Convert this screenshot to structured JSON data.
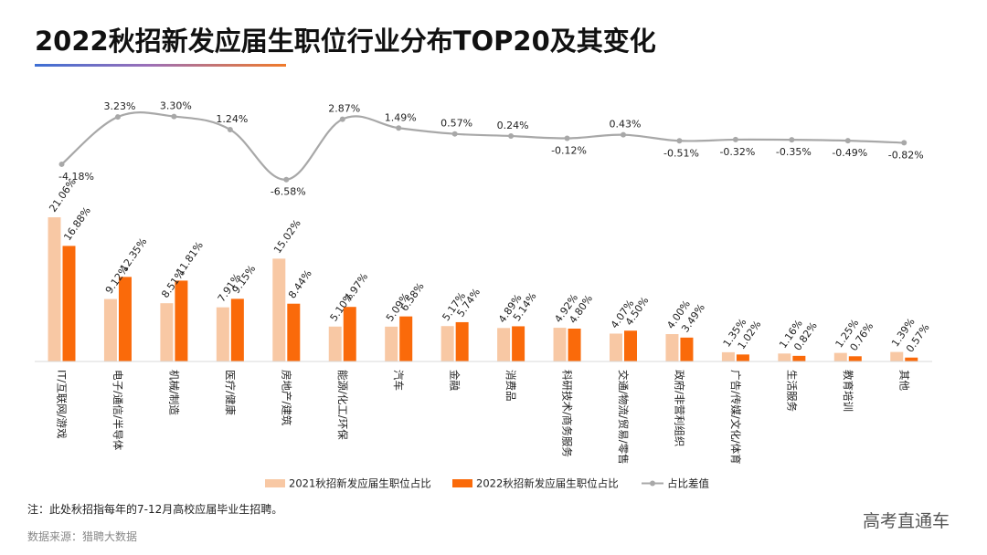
{
  "title": "2022秋招新发应届生职位行业分布TOP20及其变化",
  "note": "注：此处秋招指每年的7-12月高校应届毕业生招聘。",
  "source": "数据来源：猎聘大数据",
  "watermark": "高考直通车",
  "colors": {
    "s2021": "#f8c8a4",
    "s2022": "#fa6a0a",
    "diff": "#a8a8a8"
  },
  "chart_data": {
    "type": "bar",
    "title": "2022秋招新发应届生职位行业分布TOP20及其变化",
    "categories": [
      "IT/互联网/游戏",
      "电子/通信/半导体",
      "机械/制造",
      "医疗/健康",
      "房地产/建筑",
      "能源/化工/环保",
      "汽车",
      "金融",
      "消费品",
      "科研技术/商务服务",
      "交通/物流/贸易/零售",
      "政府/非营利组织",
      "广告/传媒/文化/体育",
      "生活服务",
      "教育培训",
      "其他"
    ],
    "series": [
      {
        "name": "2021秋招新发应届生职位占比",
        "values": [
          21.06,
          9.12,
          8.51,
          7.91,
          15.02,
          5.1,
          5.09,
          5.17,
          4.89,
          4.92,
          4.07,
          4.0,
          1.35,
          1.16,
          1.25,
          1.39
        ],
        "labels": [
          "21.06%",
          "9.12%",
          "8.51%",
          "7.91%",
          "15.02%",
          "5.10%",
          "5.09%",
          "5.17%",
          "4.89%",
          "4.92%",
          "4.07%",
          "4.00%",
          "1.35%",
          "1.16%",
          "1.25%",
          "1.39%"
        ]
      },
      {
        "name": "2022秋招新发应届生职位占比",
        "values": [
          16.88,
          12.35,
          11.81,
          9.15,
          8.44,
          7.97,
          6.58,
          5.74,
          5.14,
          4.8,
          4.5,
          3.49,
          1.02,
          0.82,
          0.76,
          0.57
        ],
        "labels": [
          "16.88%",
          "12.35%",
          "11.81%",
          "9.15%",
          "8.44%",
          "7.97%",
          "6.58%",
          "5.74%",
          "5.14%",
          "4.80%",
          "4.50%",
          "3.49%",
          "1.02%",
          "0.82%",
          "0.76%",
          "0.57%"
        ]
      }
    ],
    "line_series": {
      "name": "占比差值",
      "type": "line",
      "values": [
        -4.18,
        3.23,
        3.3,
        1.24,
        -6.58,
        2.87,
        1.49,
        0.57,
        0.24,
        -0.12,
        0.43,
        -0.51,
        -0.32,
        -0.35,
        -0.49,
        -0.82
      ],
      "labels": [
        "-4.18%",
        "3.23%",
        "3.30%",
        "1.24%",
        "-6.58%",
        "2.87%",
        "1.49%",
        "0.57%",
        "0.24%",
        "-0.12%",
        "0.43%",
        "-0.51%",
        "-0.32%",
        "-0.35%",
        "-0.49%",
        "-0.82%"
      ]
    },
    "legend": [
      "2021秋招新发应届生职位占比",
      "2022秋招新发应届生职位占比",
      "占比差值"
    ],
    "ylim": [
      0,
      22
    ]
  }
}
